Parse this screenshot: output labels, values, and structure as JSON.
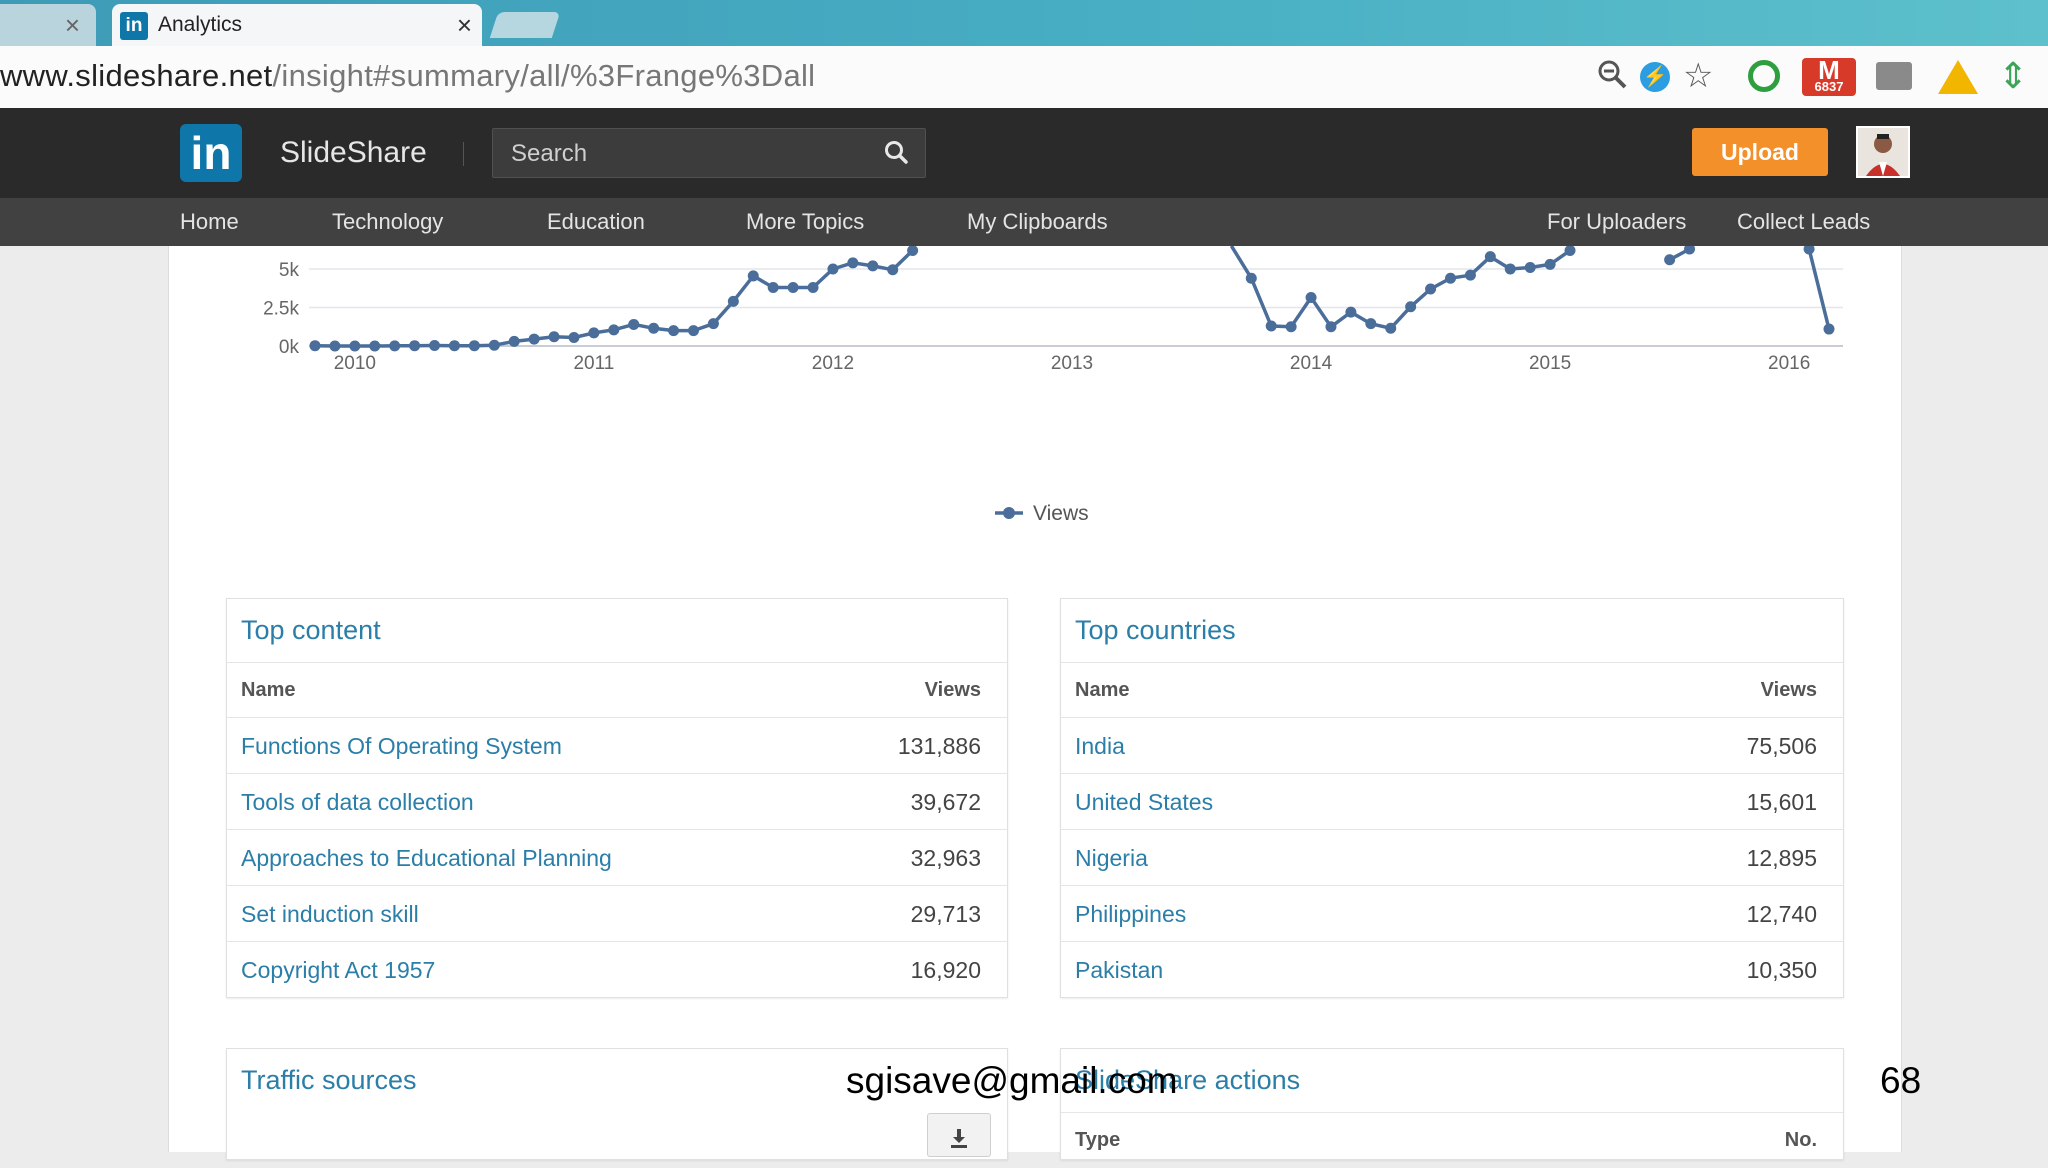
{
  "browser": {
    "tab_title": "Analytics",
    "url_host": "www.slideshare.net",
    "url_path": "/insight#summary/all/%3Frange%3Dall",
    "gmail_count": "6837"
  },
  "header": {
    "logo_badge": "in",
    "logo_text": "SlideShare",
    "search_placeholder": "Search",
    "upload_label": "Upload"
  },
  "nav": {
    "home": "Home",
    "technology": "Technology",
    "education": "Education",
    "more_topics": "More Topics",
    "my_clipboards": "My Clipboards",
    "for_uploaders": "For Uploaders",
    "collect_leads": "Collect Leads"
  },
  "chart_data": {
    "type": "line",
    "y_ticks": [
      "0k",
      "2.5k",
      "5k"
    ],
    "x_ticks": [
      "2010",
      "2011",
      "2012",
      "2013",
      "2014",
      "2015",
      "2016"
    ],
    "ylim": [
      0,
      5000
    ],
    "legend": "Views",
    "legend_position": "bottom-center",
    "grid": true,
    "series": [
      {
        "name": "Views",
        "color": "#4a6d9a",
        "points": [
          [
            "2009-11",
            20
          ],
          [
            "2009-12",
            0
          ],
          [
            "2010-01",
            0
          ],
          [
            "2010-02",
            0
          ],
          [
            "2010-03",
            10
          ],
          [
            "2010-04",
            20
          ],
          [
            "2010-05",
            30
          ],
          [
            "2010-06",
            20
          ],
          [
            "2010-07",
            20
          ],
          [
            "2010-08",
            50
          ],
          [
            "2010-09",
            300
          ],
          [
            "2010-10",
            450
          ],
          [
            "2010-11",
            600
          ],
          [
            "2010-12",
            550
          ],
          [
            "2011-01",
            850
          ],
          [
            "2011-02",
            1050
          ],
          [
            "2011-03",
            1400
          ],
          [
            "2011-04",
            1150
          ],
          [
            "2011-05",
            1000
          ],
          [
            "2011-06",
            1000
          ],
          [
            "2011-07",
            1450
          ],
          [
            "2011-08",
            2900
          ],
          [
            "2011-09",
            4550
          ],
          [
            "2011-10",
            3800
          ],
          [
            "2011-11",
            3800
          ],
          [
            "2011-12",
            3800
          ],
          [
            "2012-01",
            5000
          ],
          [
            "2012-02",
            5400
          ],
          [
            "2012-03",
            5200
          ],
          [
            "2012-04",
            4950
          ],
          [
            "2012-05",
            6200
          ],
          null,
          [
            "2013-09",
            6500
          ],
          [
            "2013-10",
            4400
          ],
          [
            "2013-11",
            1300
          ],
          [
            "2013-12",
            1250
          ],
          [
            "2014-01",
            3150
          ],
          [
            "2014-02",
            1250
          ],
          [
            "2014-03",
            2200
          ],
          [
            "2014-04",
            1450
          ],
          [
            "2014-05",
            1150
          ],
          [
            "2014-06",
            2550
          ],
          [
            "2014-07",
            3700
          ],
          [
            "2014-08",
            4400
          ],
          [
            "2014-09",
            4600
          ],
          [
            "2014-10",
            5800
          ],
          [
            "2014-11",
            5000
          ],
          [
            "2014-12",
            5100
          ],
          [
            "2015-01",
            5300
          ],
          [
            "2015-02",
            6200
          ],
          null,
          [
            "2015-07",
            5600
          ],
          [
            "2015-08",
            6300
          ],
          null,
          [
            "2016-02",
            6300
          ],
          [
            "2016-03",
            1100
          ]
        ]
      }
    ]
  },
  "top_content": {
    "title": "Top content",
    "col_name": "Name",
    "col_views": "Views",
    "rows": [
      {
        "name": "Functions Of Operating System",
        "views": "131,886"
      },
      {
        "name": "Tools of data collection",
        "views": "39,672"
      },
      {
        "name": "Approaches to Educational Planning",
        "views": "32,963"
      },
      {
        "name": "Set induction skill",
        "views": "29,713"
      },
      {
        "name": "Copyright Act 1957",
        "views": "16,920"
      }
    ]
  },
  "top_countries": {
    "title": "Top countries",
    "col_name": "Name",
    "col_views": "Views",
    "rows": [
      {
        "name": "India",
        "views": "75,506"
      },
      {
        "name": "United States",
        "views": "15,601"
      },
      {
        "name": "Nigeria",
        "views": "12,895"
      },
      {
        "name": "Philippines",
        "views": "12,740"
      },
      {
        "name": "Pakistan",
        "views": "10,350"
      }
    ]
  },
  "traffic_sources": {
    "title": "Traffic sources"
  },
  "slideshare_actions": {
    "title": "SlideShare actions",
    "col_type": "Type",
    "col_no": "No."
  },
  "footer": {
    "email": "sgisave@gmail.com",
    "page_number": "68"
  }
}
